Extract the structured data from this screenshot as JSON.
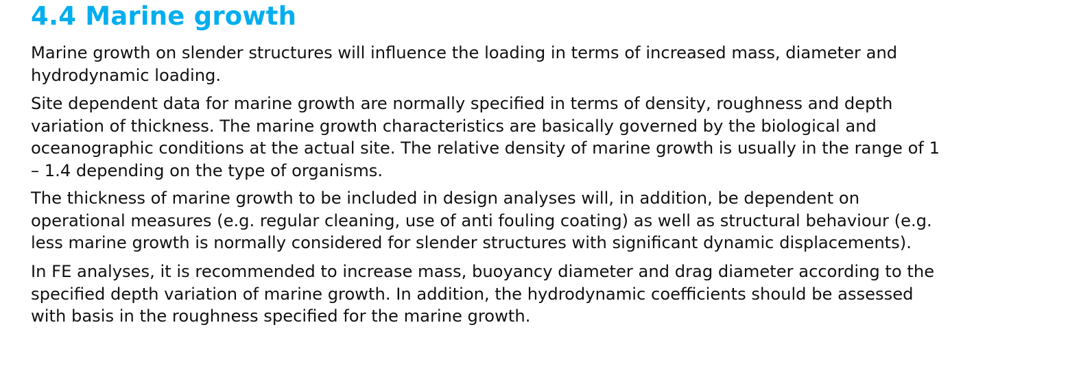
{
  "section": {
    "number_title": "4.4 Marine growth"
  },
  "paragraphs": [
    {
      "lines": [
        "Marine growth on slender structures will influence the loading in terms of increased mass, diameter and",
        "hydrodynamic loading."
      ]
    },
    {
      "lines": [
        "Site dependent data for marine growth are normally specified in terms of density, roughness and depth",
        "variation of thickness. The marine growth characteristics are basically governed by the biological and",
        "oceanographic conditions at the actual site. The relative density of marine growth is usually in the range of 1",
        "– 1.4 depending on the type of organisms."
      ]
    },
    {
      "lines": [
        "The thickness of marine growth to be included in design analyses will, in addition, be dependent on",
        "operational measures (e.g. regular cleaning, use of anti fouling coating) as well as structural behaviour (e.g.",
        "less marine growth is normally considered for slender structures with significant dynamic displacements)."
      ]
    },
    {
      "lines": [
        "In FE analyses, it is recommended to increase mass, buoyancy diameter and drag diameter according to the",
        "specified depth variation of marine growth. In addition, the hydrodynamic coefficients should be assessed",
        "with basis in the roughness specified for the marine growth."
      ]
    }
  ],
  "colors": {
    "heading": "#00aeef",
    "body_text": "#111111",
    "background": "#ffffff"
  }
}
